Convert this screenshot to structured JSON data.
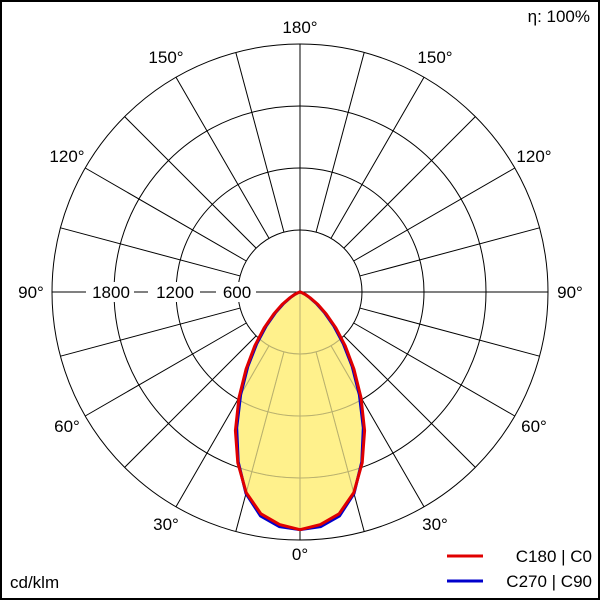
{
  "chart_data": {
    "type": "polar",
    "efficiency_label": "η: 100%",
    "unit_label": "cd/klm",
    "angle_labels": {
      "a0": "0°",
      "a30": "30°",
      "a60": "60°",
      "a90": "90°",
      "a120": "120°",
      "a150": "150°",
      "a180": "180°"
    },
    "radial_ticks": [
      {
        "value": 600,
        "label": "600"
      },
      {
        "value": 1200,
        "label": "1200"
      },
      {
        "value": 1800,
        "label": "1800"
      }
    ],
    "radial_max": 2400,
    "angle_step_deg": 15,
    "grid": true,
    "legend_position": "bottom-right",
    "series": [
      {
        "name": "C180 | C0",
        "color": "#e00000",
        "fill": "#fff080",
        "angles_deg": [
          0,
          5,
          10,
          15,
          20,
          25,
          30,
          35,
          40,
          45,
          50,
          55,
          60,
          65,
          70,
          75,
          80,
          85,
          90
        ],
        "values": [
          2300,
          2260,
          2180,
          2010,
          1760,
          1480,
          1180,
          910,
          680,
          490,
          330,
          210,
          120,
          60,
          25,
          8,
          2,
          0,
          0
        ]
      },
      {
        "name": "C270 | C90",
        "color": "#0000cc",
        "angles_deg": [
          0,
          5,
          10,
          15,
          20,
          25,
          30,
          35,
          40,
          45,
          50,
          55,
          60,
          65,
          70,
          75,
          80,
          85,
          90
        ],
        "values": [
          2300,
          2280,
          2200,
          2020,
          1750,
          1450,
          1150,
          880,
          650,
          460,
          310,
          195,
          110,
          55,
          22,
          7,
          2,
          0,
          0
        ]
      }
    ]
  }
}
